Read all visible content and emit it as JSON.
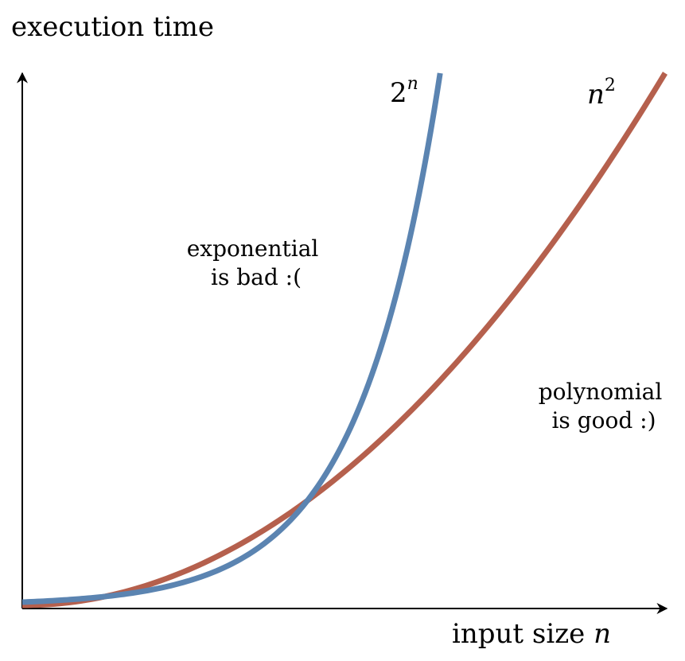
{
  "chart_data": {
    "type": "line",
    "title": "",
    "ylabel": "execution time",
    "xlabel_text": "input size ",
    "xlabel_var": "n",
    "axis_ticks": false,
    "grid": false,
    "legend": "none",
    "series": [
      {
        "label_base": "n",
        "label_sup": "2",
        "formula": "n^2",
        "color": "#b5604d",
        "x": [
          0,
          0.1,
          0.2,
          0.3,
          0.4,
          0.5,
          0.6,
          0.7,
          0.8,
          0.9,
          1.0
        ],
        "y": [
          0,
          0.01,
          0.04,
          0.09,
          0.16,
          0.25,
          0.36,
          0.49,
          0.64,
          0.81,
          1.0
        ]
      },
      {
        "label_base": "2",
        "label_sup": "n",
        "formula": "2^n",
        "color": "#5b84b1",
        "x": [
          0,
          0.1,
          0.2,
          0.3,
          0.4,
          0.45,
          0.5,
          0.55,
          0.6,
          0.65
        ],
        "y": [
          0.006,
          0.02,
          0.05,
          0.1,
          0.16,
          0.23,
          0.36,
          0.57,
          0.78,
          1.0
        ]
      }
    ],
    "annotations": [
      {
        "lines": [
          "exponential",
          "is bad :("
        ]
      },
      {
        "lines": [
          "polynomial",
          "is good :)"
        ]
      }
    ]
  }
}
